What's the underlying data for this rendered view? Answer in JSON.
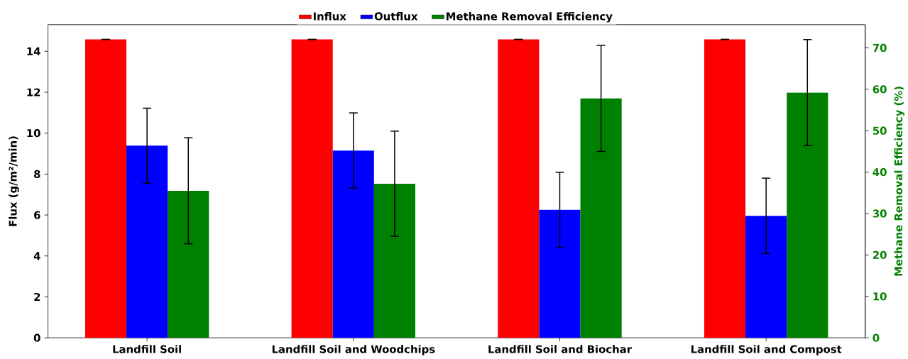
{
  "chart_data": {
    "type": "bar",
    "categories": [
      "Landfill Soil",
      "Landfill Soil and Woodchips",
      "Landfill Soil and Biochar",
      "Landfill Soil and Compost"
    ],
    "ylabel": "Flux (g/m²/min)",
    "y2label": "Methane Removal Efficiency (%)",
    "series": [
      {
        "name": "Influx",
        "color": "#ff0000",
        "values": [
          14.58,
          14.58,
          14.58,
          14.58
        ],
        "errors": [
          0,
          0,
          0,
          0
        ]
      },
      {
        "name": "Outflux",
        "color": "#0000ff",
        "values": [
          9.39,
          9.15,
          6.25,
          5.96
        ],
        "errors": [
          1.83,
          1.84,
          1.84,
          1.84
        ]
      },
      {
        "name": "Methane Removal Efficiency",
        "color": "#008000",
        "axis": "y2",
        "values": [
          35.5,
          37.2,
          57.8,
          59.2
        ],
        "errors": [
          12.8,
          12.7,
          12.8,
          12.8
        ]
      }
    ],
    "ylim": [
      0,
      15.3
    ],
    "yticks": [
      0,
      2,
      4,
      6,
      8,
      10,
      12,
      14
    ],
    "y2lim": [
      0,
      75.6
    ],
    "y2ticks": [
      0,
      10,
      20,
      30,
      40,
      50,
      60,
      70
    ],
    "legend": "top"
  }
}
